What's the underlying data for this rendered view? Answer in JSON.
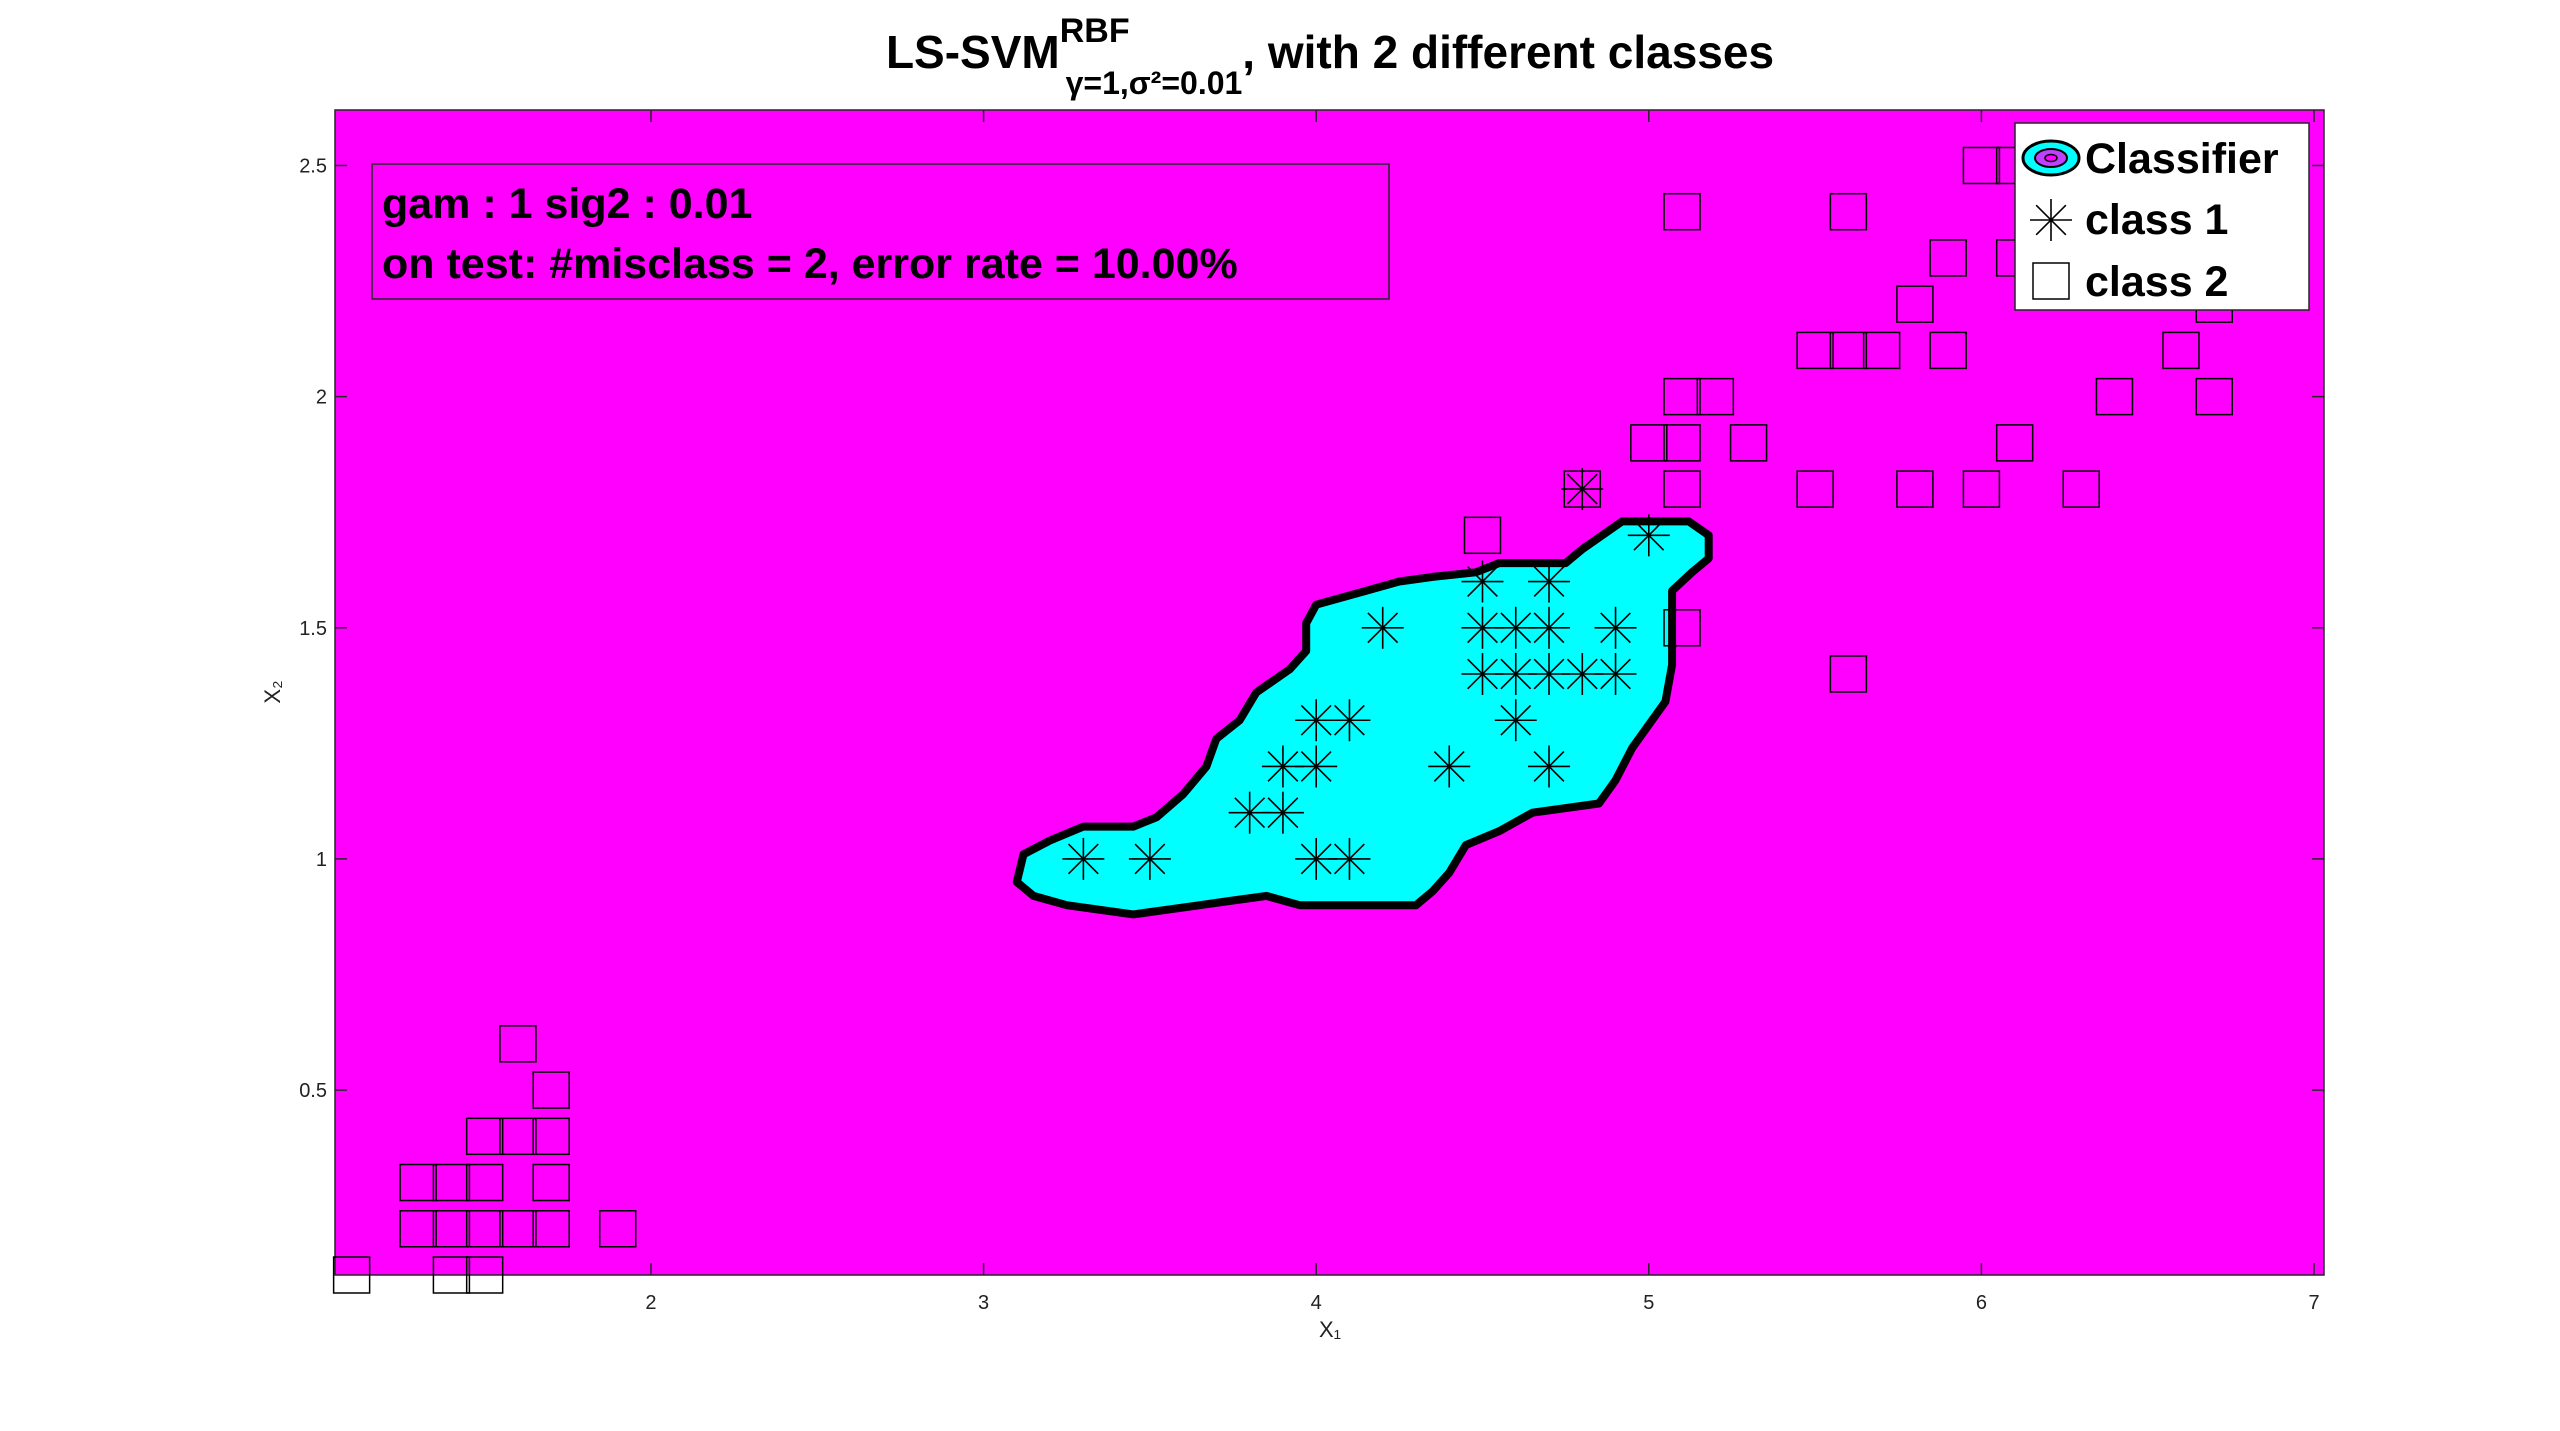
{
  "chart_data": {
    "type": "scatter",
    "title": {
      "main": "LS-SVM",
      "superscript": "RBF",
      "subscript": "γ=1,σ²=0.01",
      "suffix": ", with 2 different classes"
    },
    "xlabel": "X₁",
    "ylabel": "X₂",
    "xlim": [
      1.05,
      7.03
    ],
    "ylim": [
      0.1,
      2.62
    ],
    "xticks": [
      2,
      3,
      4,
      5,
      6,
      7
    ],
    "yticks": [
      0.5,
      1,
      1.5,
      2,
      2.5
    ],
    "grid": false,
    "background_color": "#ff00ff",
    "region_color": "#00ffff",
    "legend": {
      "placement": "top-right",
      "items": [
        "Classifier",
        "class 1",
        "class 2"
      ]
    },
    "annotation": {
      "line1": "gam : 1   sig2 : 0.01",
      "line2": "on test: #misclass = 2, error rate = 10.00%"
    },
    "classifier_boundary": [
      [
        3.1,
        0.95
      ],
      [
        3.15,
        0.92
      ],
      [
        3.25,
        0.9
      ],
      [
        3.35,
        0.89
      ],
      [
        3.45,
        0.88
      ],
      [
        3.55,
        0.89
      ],
      [
        3.65,
        0.9
      ],
      [
        3.75,
        0.91
      ],
      [
        3.85,
        0.92
      ],
      [
        3.95,
        0.9
      ],
      [
        4.3,
        0.9
      ],
      [
        4.35,
        0.93
      ],
      [
        4.4,
        0.97
      ],
      [
        4.45,
        1.03
      ],
      [
        4.55,
        1.06
      ],
      [
        4.65,
        1.1
      ],
      [
        4.85,
        1.12
      ],
      [
        4.9,
        1.17
      ],
      [
        4.95,
        1.24
      ],
      [
        5.05,
        1.34
      ],
      [
        5.07,
        1.42
      ],
      [
        5.07,
        1.58
      ],
      [
        5.13,
        1.62
      ],
      [
        5.18,
        1.65
      ],
      [
        5.18,
        1.7
      ],
      [
        5.12,
        1.73
      ],
      [
        4.92,
        1.73
      ],
      [
        4.8,
        1.67
      ],
      [
        4.75,
        1.64
      ],
      [
        4.55,
        1.64
      ],
      [
        4.48,
        1.62
      ],
      [
        4.35,
        1.61
      ],
      [
        4.25,
        1.6
      ],
      [
        4.15,
        1.58
      ],
      [
        4.0,
        1.55
      ],
      [
        3.97,
        1.51
      ],
      [
        3.97,
        1.45
      ],
      [
        3.92,
        1.41
      ],
      [
        3.82,
        1.36
      ],
      [
        3.77,
        1.3
      ],
      [
        3.7,
        1.26
      ],
      [
        3.67,
        1.2
      ],
      [
        3.6,
        1.14
      ],
      [
        3.52,
        1.09
      ],
      [
        3.45,
        1.07
      ],
      [
        3.3,
        1.07
      ],
      [
        3.2,
        1.04
      ],
      [
        3.12,
        1.01
      ]
    ],
    "series": [
      {
        "name": "class 1",
        "marker": "asterisk",
        "points": [
          [
            3.3,
            1.0
          ],
          [
            3.5,
            1.0
          ],
          [
            3.8,
            1.1
          ],
          [
            3.9,
            1.1
          ],
          [
            3.9,
            1.2
          ],
          [
            4.0,
            1.2
          ],
          [
            4.0,
            1.3
          ],
          [
            4.1,
            1.3
          ],
          [
            4.0,
            1.0
          ],
          [
            4.1,
            1.0
          ],
          [
            4.2,
            1.5
          ],
          [
            4.4,
            1.2
          ],
          [
            4.5,
            1.4
          ],
          [
            4.5,
            1.5
          ],
          [
            4.5,
            1.6
          ],
          [
            4.6,
            1.3
          ],
          [
            4.6,
            1.4
          ],
          [
            4.6,
            1.5
          ],
          [
            4.7,
            1.2
          ],
          [
            4.7,
            1.4
          ],
          [
            4.7,
            1.5
          ],
          [
            4.7,
            1.6
          ],
          [
            4.8,
            1.4
          ],
          [
            4.8,
            1.8
          ],
          [
            4.9,
            1.4
          ],
          [
            4.9,
            1.5
          ],
          [
            5.0,
            1.7
          ]
        ]
      },
      {
        "name": "class 2",
        "marker": "square",
        "points": [
          [
            1.1,
            0.1
          ],
          [
            1.4,
            0.1
          ],
          [
            1.5,
            0.1
          ],
          [
            1.3,
            0.2
          ],
          [
            1.4,
            0.2
          ],
          [
            1.5,
            0.2
          ],
          [
            1.6,
            0.2
          ],
          [
            1.7,
            0.2
          ],
          [
            1.9,
            0.2
          ],
          [
            1.3,
            0.3
          ],
          [
            1.4,
            0.3
          ],
          [
            1.5,
            0.3
          ],
          [
            1.7,
            0.3
          ],
          [
            1.5,
            0.4
          ],
          [
            1.6,
            0.4
          ],
          [
            1.7,
            0.4
          ],
          [
            1.7,
            0.5
          ],
          [
            1.6,
            0.6
          ],
          [
            4.5,
            1.7
          ],
          [
            4.8,
            1.8
          ],
          [
            5.1,
            1.5
          ],
          [
            5.0,
            1.9
          ],
          [
            5.1,
            1.9
          ],
          [
            5.3,
            1.9
          ],
          [
            6.1,
            1.9
          ],
          [
            5.1,
            1.8
          ],
          [
            5.5,
            1.8
          ],
          [
            5.8,
            1.8
          ],
          [
            6.0,
            1.8
          ],
          [
            6.3,
            1.8
          ],
          [
            5.1,
            2.0
          ],
          [
            5.2,
            2.0
          ],
          [
            6.4,
            2.0
          ],
          [
            6.7,
            2.0
          ],
          [
            5.5,
            2.1
          ],
          [
            5.6,
            2.1
          ],
          [
            5.7,
            2.1
          ],
          [
            5.9,
            2.1
          ],
          [
            6.6,
            2.1
          ],
          [
            5.8,
            2.2
          ],
          [
            6.7,
            2.2
          ],
          [
            5.9,
            2.3
          ],
          [
            6.1,
            2.3
          ],
          [
            5.1,
            2.4
          ],
          [
            5.6,
            2.4
          ],
          [
            6.0,
            2.5
          ],
          [
            6.1,
            2.5
          ],
          [
            5.6,
            1.4
          ]
        ]
      }
    ]
  }
}
